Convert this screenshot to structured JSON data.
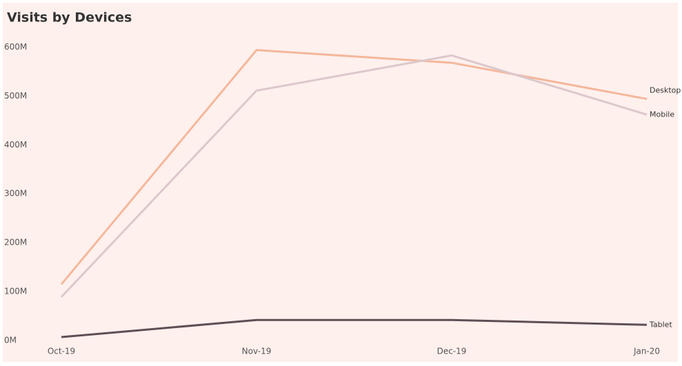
{
  "chart_data": {
    "type": "line",
    "title": "Visits by Devices",
    "categories": [
      "Oct-19",
      "Nov-19",
      "Dec-19",
      "Jan-20"
    ],
    "series": [
      {
        "name": "Desktop",
        "color": "#f4b79b",
        "values": [
          115,
          594,
          568,
          494
        ]
      },
      {
        "name": "Mobile",
        "color": "#dcc8cc",
        "values": [
          89,
          511,
          583,
          462
        ]
      },
      {
        "name": "Tablet",
        "color": "#5e4e55",
        "values": [
          7,
          42,
          42,
          32
        ]
      }
    ],
    "ylim": [
      0,
      640
    ],
    "yticks": [
      {
        "value": 0,
        "label": "0M"
      },
      {
        "value": 100,
        "label": "100M"
      },
      {
        "value": 200,
        "label": "200M"
      },
      {
        "value": 300,
        "label": "300M"
      },
      {
        "value": 400,
        "label": "400M"
      },
      {
        "value": 500,
        "label": "500M"
      },
      {
        "value": 600,
        "label": "600M"
      }
    ],
    "grid": false
  }
}
